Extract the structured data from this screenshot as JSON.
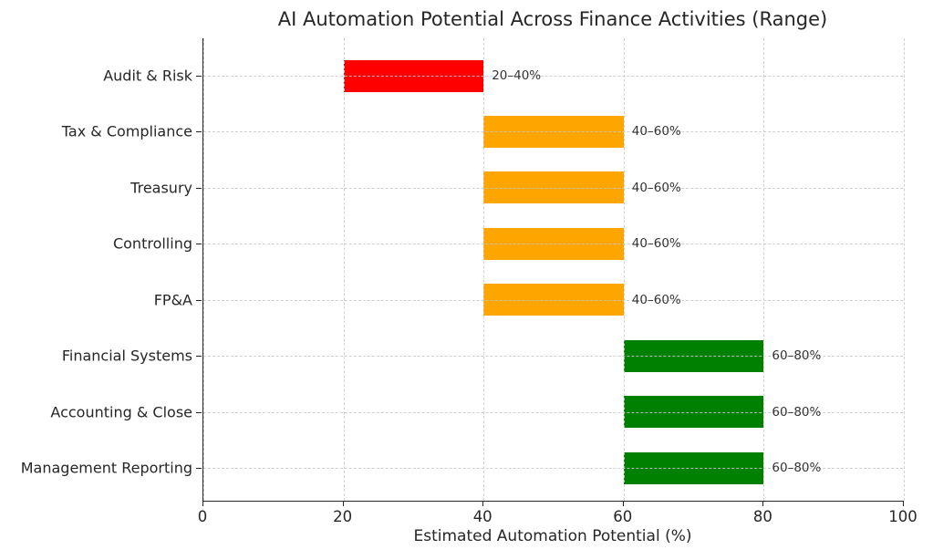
{
  "chart_data": {
    "type": "bar",
    "orientation": "horizontal",
    "title": "AI Automation Potential Across Finance Activities (Range)",
    "xlabel": "Estimated Automation Potential (%)",
    "ylabel": "",
    "categories": [
      "Audit & Risk",
      "Tax & Compliance",
      "Treasury",
      "Controlling",
      "FP&A",
      "Financial Systems",
      "Accounting & Close",
      "Management Reporting"
    ],
    "series": [
      {
        "name": "Audit & Risk",
        "range": [
          20,
          40
        ],
        "label": "20–40%",
        "color": "#ff0000"
      },
      {
        "name": "Tax & Compliance",
        "range": [
          40,
          60
        ],
        "label": "40–60%",
        "color": "#ffa500"
      },
      {
        "name": "Treasury",
        "range": [
          40,
          60
        ],
        "label": "40–60%",
        "color": "#ffa500"
      },
      {
        "name": "Controlling",
        "range": [
          40,
          60
        ],
        "label": "40–60%",
        "color": "#ffa500"
      },
      {
        "name": "FP&A",
        "range": [
          40,
          60
        ],
        "label": "40–60%",
        "color": "#ffa500"
      },
      {
        "name": "Financial Systems",
        "range": [
          60,
          80
        ],
        "label": "60–80%",
        "color": "#008000"
      },
      {
        "name": "Accounting & Close",
        "range": [
          60,
          80
        ],
        "label": "60–80%",
        "color": "#008000"
      },
      {
        "name": "Management Reporting",
        "range": [
          60,
          80
        ],
        "label": "60–80%",
        "color": "#008000"
      }
    ],
    "xlim": [
      0,
      100
    ],
    "xticks": [
      0,
      20,
      40,
      60,
      80,
      100
    ],
    "grid": {
      "style": "dashed",
      "color": "#c8c8c8",
      "axis": "both",
      "above_bars": true
    },
    "legend": "none",
    "spines": [
      "left",
      "bottom"
    ]
  }
}
